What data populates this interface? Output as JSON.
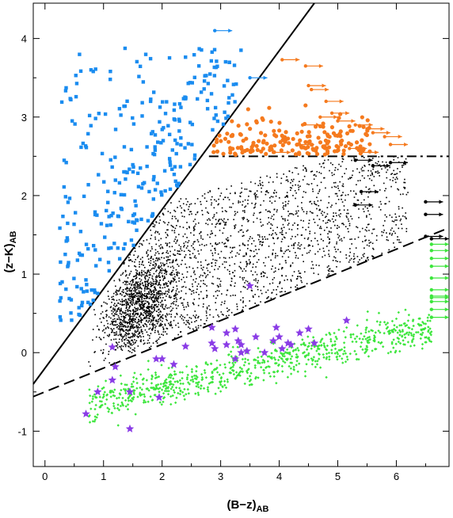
{
  "chart_data": {
    "type": "scatter",
    "title": "",
    "xlabel": {
      "main": "(B−z)",
      "sub": "AB"
    },
    "ylabel": {
      "main": "(z−K)",
      "sub": "AB"
    },
    "xlim": [
      -0.2,
      6.9
    ],
    "ylim": [
      -1.45,
      4.45
    ],
    "x_ticks": [
      0,
      1,
      2,
      3,
      4,
      5,
      6
    ],
    "y_ticks": [
      -1,
      0,
      1,
      2,
      3,
      4
    ],
    "grid": false,
    "legend": "none",
    "colors": {
      "blue": "#1a8cf0",
      "orange": "#f57a1e",
      "black": "#000000",
      "green": "#3ce63c",
      "purple": "#8a3ce6"
    },
    "lines": [
      {
        "style": "solid",
        "x": [
          -0.2,
          4.6
        ],
        "y": [
          -0.4,
          4.45
        ]
      },
      {
        "style": "dashdot",
        "x": [
          2.8,
          6.9
        ],
        "y": [
          2.5,
          2.5
        ]
      },
      {
        "style": "dashed",
        "x": [
          -0.2,
          6.9
        ],
        "y": [
          -0.56,
          1.59
        ]
      }
    ],
    "series": [
      {
        "marker": "square",
        "color": "blue",
        "n": 300,
        "x_range": [
          0.2,
          3.3
        ],
        "y_range": [
          0.3,
          3.9
        ],
        "arrows_right": [
          [
            2.9,
            4.1
          ],
          [
            3.5,
            3.5
          ]
        ]
      },
      {
        "marker": "circle",
        "color": "orange",
        "n": 180,
        "x_range": [
          2.8,
          5.6
        ],
        "y_range": [
          2.5,
          3.8
        ],
        "arrows_right": [
          [
            4.05,
            3.73
          ],
          [
            4.45,
            3.65
          ],
          [
            4.5,
            3.4
          ],
          [
            4.55,
            3.35
          ],
          [
            4.8,
            3.2
          ],
          [
            4.9,
            3.05
          ],
          [
            4.7,
            3.0
          ],
          [
            5.0,
            2.95
          ],
          [
            4.4,
            2.9
          ],
          [
            5.3,
            2.9
          ],
          [
            5.6,
            2.8
          ],
          [
            5.8,
            2.75
          ],
          [
            5.9,
            2.65
          ],
          [
            5.2,
            2.6
          ],
          [
            5.4,
            2.55
          ],
          [
            3.9,
            2.55
          ],
          [
            4.3,
            2.65
          ],
          [
            5.5,
            2.85
          ]
        ]
      },
      {
        "marker": "dot",
        "color": "black",
        "n": 3000,
        "x_range": [
          1.0,
          6.9
        ],
        "y_range": [
          -0.1,
          2.5
        ],
        "arrows_right": [
          [
            5.3,
            2.45
          ],
          [
            5.6,
            2.38
          ],
          [
            5.9,
            2.42
          ],
          [
            5.4,
            2.05
          ],
          [
            5.3,
            1.88
          ],
          [
            6.5,
            1.92
          ],
          [
            6.5,
            1.76
          ],
          [
            6.5,
            1.48
          ],
          [
            6.6,
            1.45
          ]
        ]
      },
      {
        "marker": "diamond",
        "color": "green",
        "n": 800,
        "x_range": [
          0.7,
          6.8
        ],
        "y_range": [
          -0.9,
          1.4
        ],
        "arrows_right": [
          [
            6.6,
            1.38
          ],
          [
            6.6,
            1.3
          ],
          [
            6.6,
            1.2
          ],
          [
            6.6,
            1.1
          ],
          [
            6.6,
            0.95
          ],
          [
            6.6,
            0.8
          ],
          [
            6.6,
            0.72
          ],
          [
            6.6,
            0.65
          ],
          [
            6.6,
            0.55
          ],
          [
            6.6,
            0.45
          ],
          [
            6.6,
            0.7
          ]
        ]
      },
      {
        "marker": "star",
        "color": "purple",
        "points": [
          [
            0.7,
            -0.78
          ],
          [
            0.9,
            -0.5
          ],
          [
            1.15,
            -0.35
          ],
          [
            1.2,
            -0.18
          ],
          [
            1.15,
            0.07
          ],
          [
            1.45,
            -0.5
          ],
          [
            1.45,
            -0.97
          ],
          [
            1.9,
            -0.08
          ],
          [
            2.0,
            -0.08
          ],
          [
            1.95,
            -0.57
          ],
          [
            2.2,
            -0.15
          ],
          [
            2.9,
            0.05
          ],
          [
            2.85,
            0.12
          ],
          [
            3.1,
            0.1
          ],
          [
            3.25,
            -0.08
          ],
          [
            3.35,
            0.0
          ],
          [
            3.3,
            0.15
          ],
          [
            3.35,
            0.1
          ],
          [
            3.45,
            0.02
          ],
          [
            3.6,
            0.2
          ],
          [
            3.75,
            0.0
          ],
          [
            3.9,
            0.15
          ],
          [
            4.0,
            0.2
          ],
          [
            4.05,
            0.05
          ],
          [
            4.15,
            0.12
          ],
          [
            4.2,
            0.1
          ],
          [
            4.35,
            0.25
          ],
          [
            4.5,
            0.3
          ],
          [
            4.6,
            0.12
          ],
          [
            5.15,
            0.41
          ],
          [
            3.5,
            0.85
          ],
          [
            2.85,
            0.32
          ],
          [
            3.25,
            0.3
          ],
          [
            3.95,
            0.32
          ],
          [
            2.4,
            0.08
          ],
          [
            3.1,
            0.25
          ]
        ]
      }
    ]
  }
}
